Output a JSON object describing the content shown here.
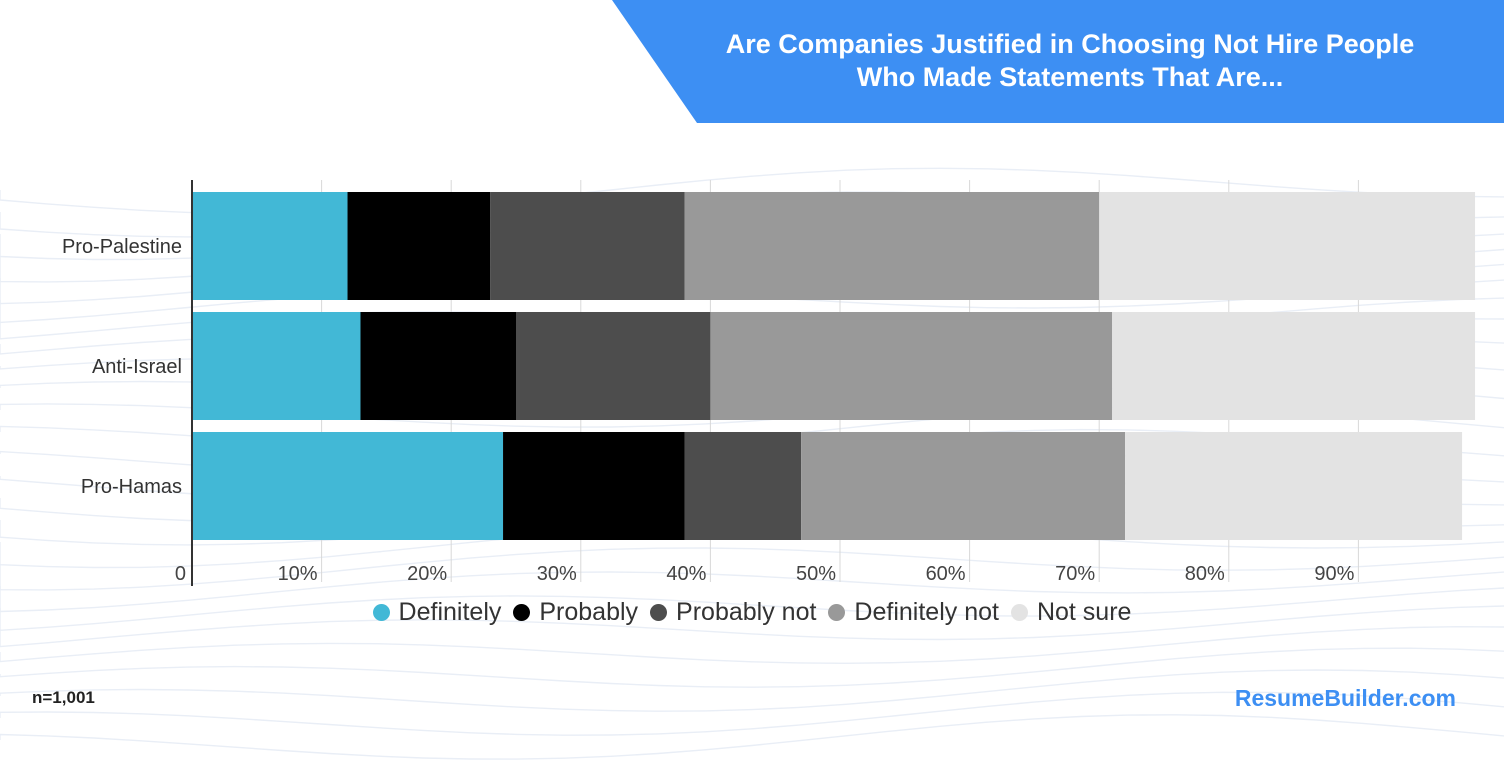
{
  "colors": {
    "banner": "#3d8ff3",
    "axis": "#333333",
    "grid": "#d8d8d8",
    "brand": "#3d8ff3"
  },
  "title": {
    "line1": "Are Companies Justified in Choosing Not Hire People",
    "line2": "Who Made Statements That Are..."
  },
  "chart_data": {
    "type": "bar",
    "orientation": "horizontal",
    "stacked": true,
    "title": "Are Companies Justified in Choosing Not Hire People Who Made Statements That Are...",
    "xlabel": "",
    "ylabel": "",
    "xlim": [
      0,
      100
    ],
    "x_tick_labels": [
      "0",
      "10%",
      "20%",
      "30%",
      "40%",
      "50%",
      "60%",
      "70%",
      "80%",
      "90%"
    ],
    "x_tick_values": [
      0,
      10,
      20,
      30,
      40,
      50,
      60,
      70,
      80,
      90
    ],
    "grid": true,
    "legend_position": "bottom",
    "categories": [
      "Pro-Palestine",
      "Anti-Israel",
      "Pro-Hamas"
    ],
    "series": [
      {
        "name": "Definitely",
        "color": "#42b8d6",
        "values": [
          12,
          13,
          24
        ]
      },
      {
        "name": "Probably",
        "color": "#000000",
        "values": [
          11,
          12,
          14
        ]
      },
      {
        "name": "Probably not",
        "color": "#4d4d4d",
        "values": [
          15,
          15,
          9
        ]
      },
      {
        "name": "Definitely not",
        "color": "#999999",
        "values": [
          32,
          31,
          25
        ]
      },
      {
        "name": "Not sure",
        "color": "#e3e3e3",
        "values": [
          29,
          28,
          26
        ]
      }
    ]
  },
  "footer": {
    "sample_size": "n=1,001",
    "brand": "ResumeBuilder.com"
  }
}
